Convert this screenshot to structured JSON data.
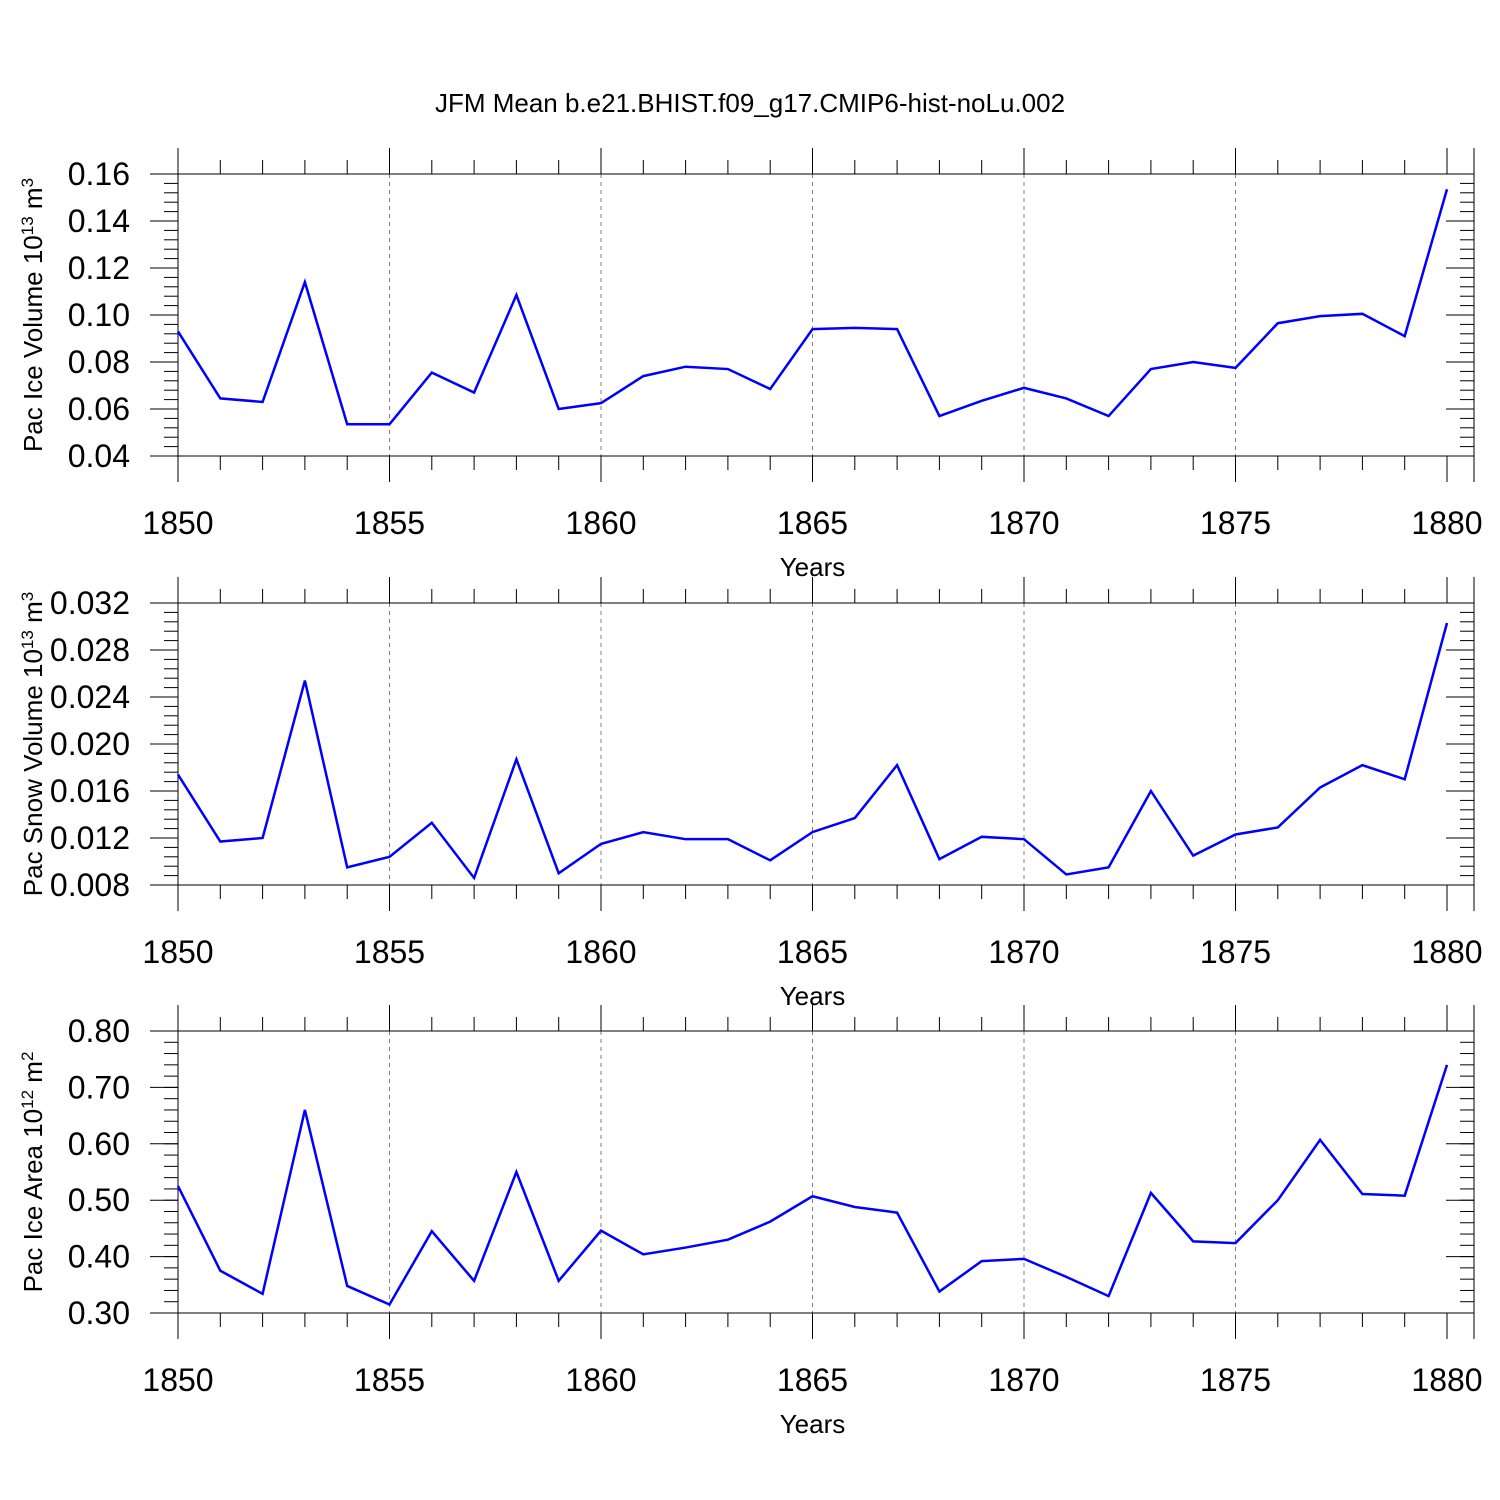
{
  "title": "JFM Mean b.e21.BHIST.f09_g17.CMIP6-hist-noLu.002",
  "line_color": "#0000ff",
  "chart_data": [
    {
      "type": "line",
      "xlabel": "Years",
      "ylabel": {
        "main": "Pac Ice Volume 10",
        "sup": "13",
        "unit": " m",
        "unit_sup": "3"
      },
      "xlim": [
        1850,
        1880
      ],
      "ylim": [
        0.04,
        0.16
      ],
      "x_ticks": [
        "1850",
        "1855",
        "1860",
        "1865",
        "1870",
        "1875",
        "1880"
      ],
      "y_ticks": [
        "0.04",
        "0.06",
        "0.08",
        "0.10",
        "0.12",
        "0.14",
        "0.16"
      ],
      "x": [
        1850,
        1851,
        1852,
        1853,
        1854,
        1855,
        1856,
        1857,
        1858,
        1859,
        1860,
        1861,
        1862,
        1863,
        1864,
        1865,
        1866,
        1867,
        1868,
        1869,
        1870,
        1871,
        1872,
        1873,
        1874,
        1875,
        1876,
        1877,
        1878,
        1879,
        1880
      ],
      "values": [
        0.093,
        0.0645,
        0.063,
        0.114,
        0.0535,
        0.0535,
        0.0755,
        0.067,
        0.1085,
        0.06,
        0.0625,
        0.074,
        0.078,
        0.077,
        0.0685,
        0.094,
        0.0945,
        0.094,
        0.057,
        0.0635,
        0.069,
        0.0645,
        0.057,
        0.077,
        0.08,
        0.0775,
        0.0965,
        0.0995,
        0.1005,
        0.091,
        0.1535
      ]
    },
    {
      "type": "line",
      "xlabel": "Years",
      "ylabel": {
        "main": "Pac Snow Volume 10",
        "sup": "13",
        "unit": " m",
        "unit_sup": "3"
      },
      "xlim": [
        1850,
        1880
      ],
      "ylim": [
        0.008,
        0.032
      ],
      "x_ticks": [
        "1850",
        "1855",
        "1860",
        "1865",
        "1870",
        "1875",
        "1880"
      ],
      "y_ticks": [
        "0.008",
        "0.012",
        "0.016",
        "0.020",
        "0.024",
        "0.028",
        "0.032"
      ],
      "x": [
        1850,
        1851,
        1852,
        1853,
        1854,
        1855,
        1856,
        1857,
        1858,
        1859,
        1860,
        1861,
        1862,
        1863,
        1864,
        1865,
        1866,
        1867,
        1868,
        1869,
        1870,
        1871,
        1872,
        1873,
        1874,
        1875,
        1876,
        1877,
        1878,
        1879,
        1880
      ],
      "values": [
        0.0174,
        0.0117,
        0.012,
        0.0254,
        0.0095,
        0.0104,
        0.0133,
        0.0086,
        0.0187,
        0.009,
        0.0115,
        0.0125,
        0.0119,
        0.0119,
        0.0101,
        0.0125,
        0.0137,
        0.0182,
        0.0102,
        0.0121,
        0.0119,
        0.0089,
        0.0095,
        0.016,
        0.0105,
        0.0123,
        0.0129,
        0.0163,
        0.0182,
        0.017,
        0.0303
      ]
    },
    {
      "type": "line",
      "xlabel": "Years",
      "ylabel": {
        "main": "Pac Ice Area 10",
        "sup": "12",
        "unit": " m",
        "unit_sup": "2"
      },
      "xlim": [
        1850,
        1880
      ],
      "ylim": [
        0.3,
        0.8
      ],
      "x_ticks": [
        "1850",
        "1855",
        "1860",
        "1865",
        "1870",
        "1875",
        "1880"
      ],
      "y_ticks": [
        "0.30",
        "0.40",
        "0.50",
        "0.60",
        "0.70",
        "0.80"
      ],
      "x": [
        1850,
        1851,
        1852,
        1853,
        1854,
        1855,
        1856,
        1857,
        1858,
        1859,
        1860,
        1861,
        1862,
        1863,
        1864,
        1865,
        1866,
        1867,
        1868,
        1869,
        1870,
        1871,
        1872,
        1873,
        1874,
        1875,
        1876,
        1877,
        1878,
        1879,
        1880
      ],
      "values": [
        0.525,
        0.375,
        0.334,
        0.66,
        0.348,
        0.315,
        0.445,
        0.357,
        0.55,
        0.357,
        0.446,
        0.404,
        0.416,
        0.43,
        0.462,
        0.507,
        0.488,
        0.478,
        0.338,
        0.392,
        0.396,
        0.364,
        0.33,
        0.513,
        0.427,
        0.424,
        0.5,
        0.607,
        0.511,
        0.508,
        0.74
      ]
    }
  ]
}
